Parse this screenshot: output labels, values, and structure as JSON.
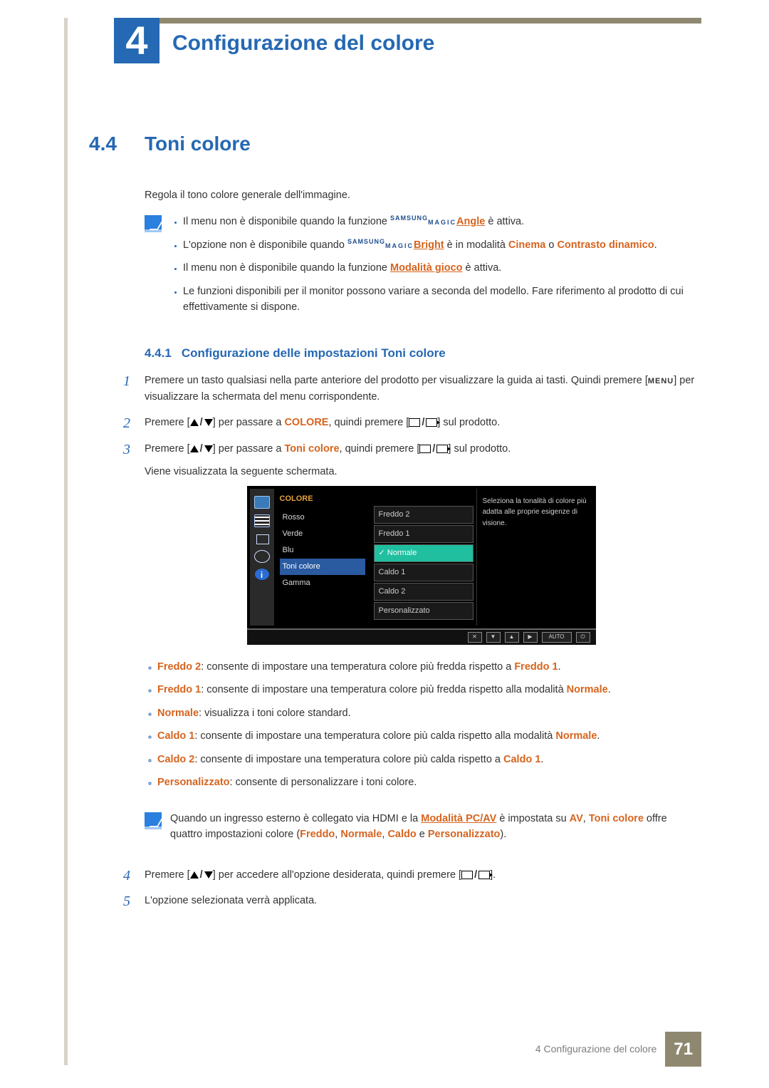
{
  "chapter_number": "4",
  "chapter_title": "Configurazione del colore",
  "section_number": "4.4",
  "section_title": "Toni colore",
  "intro_text": "Regola il tono colore generale dell'immagine.",
  "notes": [
    {
      "prefix": "Il menu non è disponibile quando la funzione ",
      "magic_suffix": "Angle",
      "suffix": " è attiva."
    },
    {
      "prefix": "L'opzione non è disponibile quando ",
      "magic_suffix": "Bright",
      "mid": " è in modalità ",
      "hl1": "Cinema",
      "or": " o ",
      "hl2": "Contrasto dinamico",
      "suffix2": "."
    },
    {
      "prefix": "Il menu non è disponibile quando la funzione ",
      "hl_link": "Modalità gioco",
      "suffix": " è attiva."
    },
    {
      "full": "Le funzioni disponibili per il monitor possono variare a seconda del modello. Fare riferimento al prodotto di cui effettivamente si dispone."
    }
  ],
  "subsection_number": "4.4.1",
  "subsection_title": "Configurazione delle impostazioni Toni colore",
  "steps": {
    "s1a": "Premere un tasto qualsiasi nella parte anteriore del prodotto per visualizzare la guida ai tasti. Quindi premere [",
    "s1_menu": "MENU",
    "s1b": "] per visualizzare la schermata del menu corrispondente.",
    "s2a": "Premere [",
    "s2b": "] per passare a ",
    "s2_hl": "COLORE",
    "s2c": ", quindi premere [",
    "s2d": "] sul prodotto.",
    "s3a": "Premere [",
    "s3b": "] per passare a ",
    "s3_hl": "Toni colore",
    "s3c": ", quindi premere [",
    "s3d": "] sul prodotto.",
    "s3e": "Viene visualizzata la seguente schermata.",
    "s4a": "Premere [",
    "s4b": "] per accedere all'opzione desiderata, quindi premere [",
    "s4c": "].",
    "s5": "L'opzione selezionata verrà applicata."
  },
  "osd": {
    "header": "COLORE",
    "col1": [
      "Rosso",
      "Verde",
      "Blu",
      "Toni colore",
      "Gamma"
    ],
    "col1_selected": 3,
    "col2": [
      "Freddo 2",
      "Freddo 1",
      "Normale",
      "Caldo 1",
      "Caldo 2",
      "Personalizzato"
    ],
    "col2_selected": 2,
    "col2_check": "✓",
    "help": "Seleziona la tonalità di colore più adatta alle proprie esigenze di visione.",
    "auto_label": "AUTO"
  },
  "descriptions": [
    {
      "hl": "Freddo 2",
      "txt": ": consente di impostare una temperatura colore più fredda rispetto a ",
      "hl2": "Freddo 1",
      "tail": "."
    },
    {
      "hl": "Freddo 1",
      "txt": ": consente di impostare una temperatura colore più fredda rispetto alla modalità ",
      "hl2": "Normale",
      "tail": "."
    },
    {
      "hl": "Normale",
      "txt": ": visualizza i toni colore standard."
    },
    {
      "hl": "Caldo 1",
      "txt": ": consente di impostare una temperatura colore più calda rispetto alla modalità ",
      "hl2": "Normale",
      "tail": "."
    },
    {
      "hl": "Caldo 2",
      "txt": ": consente di impostare una temperatura colore più calda rispetto a ",
      "hl2": "Caldo 1",
      "tail": "."
    },
    {
      "hl": "Personalizzato",
      "txt": ": consente di personalizzare i toni colore."
    }
  ],
  "note2": {
    "a": "Quando un ingresso esterno è collegato via HDMI e la ",
    "link": "Modalità PC/AV",
    "b": " è impostata su ",
    "av": "AV",
    "c": ", ",
    "toni": "Toni colore",
    "d": " offre quattro impostazioni colore (",
    "f": "Freddo",
    "sep1": ", ",
    "n": "Normale",
    "sep2": ", ",
    "ca": "Caldo",
    "e": " e ",
    "p": "Personalizzato",
    "close": ")."
  },
  "footer_text": "4 Configurazione del colore",
  "footer_page": "71",
  "colors": {
    "blue": "#2568b3",
    "orange": "#d6641e",
    "olive": "#8f8871"
  }
}
